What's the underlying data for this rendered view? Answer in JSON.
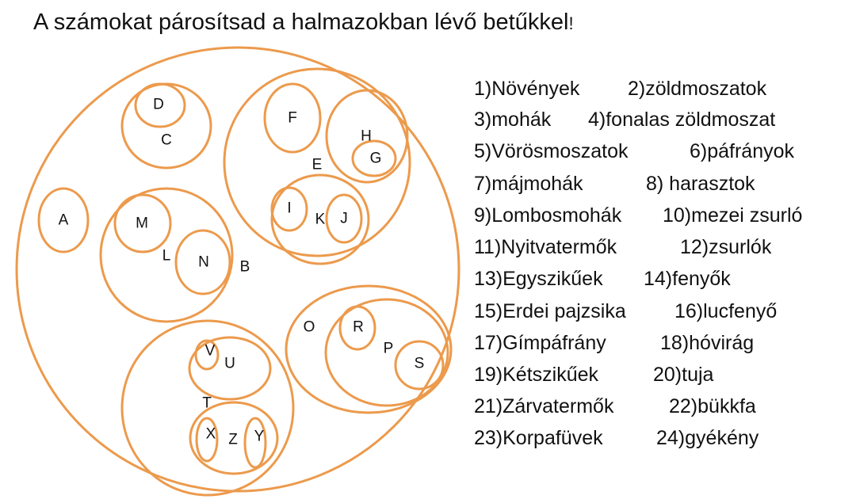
{
  "title": {
    "text": "A számokat párosítsad a halmazokban lévő betűkkel",
    "punct": "!"
  },
  "colors": {
    "set_stroke": "#ec9a4c",
    "text": "#111111"
  },
  "diagram": {
    "sets": {
      "A": "A",
      "B": "B",
      "C": "C",
      "D": "D",
      "E": "E",
      "F": "F",
      "G": "G",
      "H": "H",
      "I": "I",
      "J": "J",
      "K": "K",
      "L": "L",
      "M": "M",
      "N": "N",
      "O": "O",
      "P": "P",
      "R": "R",
      "S": "S",
      "T": "T",
      "U": "U",
      "V": "V",
      "X": "X",
      "Y": "Y",
      "Z": "Z"
    }
  },
  "list": [
    [
      "1)Növények",
      "2)zöldmoszatok"
    ],
    [
      "3)mohák",
      "4)fonalas zöldmoszat"
    ],
    [
      "5)Vörösmoszatok",
      "6)páfrányok"
    ],
    [
      "7)májmohák",
      "8) harasztok"
    ],
    [
      "9)Lombosmohák",
      "10)mezei zsurló"
    ],
    [
      "11)Nyitvatermők",
      "12)zsurlók"
    ],
    [
      "13)Egyszikűek",
      "14)fenyők"
    ],
    [
      "15)Erdei pajzsika",
      "16)lucfenyő"
    ],
    [
      "17)Gímpáfrány",
      "18)hóvirág"
    ],
    [
      "19)Kétszikűek",
      "20)tuja"
    ],
    [
      "21)Zárvatermők",
      "22)bükkfa"
    ],
    [
      "23)Korpafüvek",
      "24)gyékény"
    ]
  ]
}
